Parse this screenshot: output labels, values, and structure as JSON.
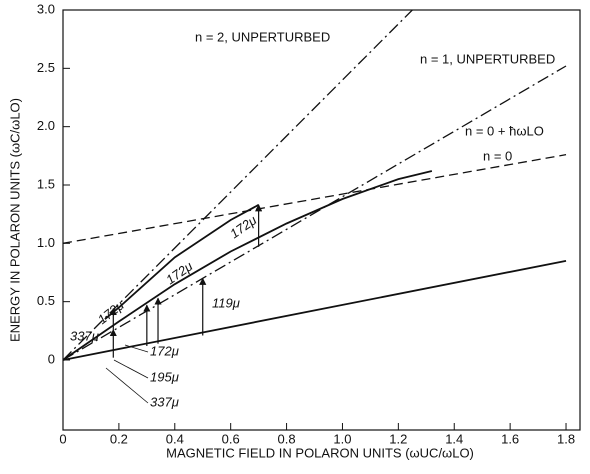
{
  "chart_data": {
    "type": "line",
    "xlabel": "MAGNETIC FIELD IN POLARON UNITS (ωUC/ωLO)",
    "ylabel": "ENERGY IN POLARON UNITS (ωC/ωLO)",
    "xlim": [
      0,
      1.85
    ],
    "ylim": [
      -0.6,
      3.0
    ],
    "xticks": [
      0,
      0.2,
      0.4,
      0.6,
      0.8,
      {
        "value": 1.0,
        "label": "1.0"
      },
      1.2,
      1.4,
      1.6,
      1.8
    ],
    "yticks": [
      0,
      0.5,
      {
        "value": 1.0,
        "label": "1.0"
      },
      1.5,
      {
        "value": 2.0,
        "label": "2.0"
      },
      2.5,
      {
        "value": 3.0,
        "label": "3.0"
      }
    ],
    "color": "#111111",
    "series": [
      {
        "name": "n = 2, UNPERTURBED",
        "style": "dashdot",
        "x": [
          0,
          1.25
        ],
        "values": [
          0,
          3.0
        ]
      },
      {
        "name": "n = 1, UNPERTURBED",
        "style": "dashdot",
        "x": [
          0,
          1.8
        ],
        "values": [
          0,
          2.52
        ]
      },
      {
        "name": "n = 0 + ħωLO",
        "style": "dashed",
        "x": [
          0,
          1.8
        ],
        "values": [
          1.0,
          1.76
        ]
      },
      {
        "name": "n = 0",
        "style": "solid",
        "x": [
          0,
          1.8
        ],
        "values": [
          0,
          0.85
        ]
      },
      {
        "style": "solid",
        "x": [
          0,
          0.2,
          0.4,
          0.6,
          0.8,
          1.0,
          1.2,
          1.32
        ],
        "values": [
          0,
          0.33,
          0.65,
          0.93,
          1.17,
          1.38,
          1.55,
          1.62
        ]
      },
      {
        "style": "solid",
        "x": [
          0.15,
          0.2,
          0.4,
          0.6,
          0.7
        ],
        "values": [
          0.35,
          0.45,
          0.88,
          1.2,
          1.33
        ]
      }
    ],
    "transitions": [
      {
        "x": 0.18,
        "from": 0.02,
        "to": 0.26
      },
      {
        "x": 0.18,
        "from": 0.26,
        "to": 0.44
      },
      {
        "x": 0.3,
        "from": 0.12,
        "to": 0.47
      },
      {
        "x": 0.34,
        "from": 0.14,
        "to": 0.53
      },
      {
        "x": 0.5,
        "from": 0.21,
        "to": 0.7
      },
      {
        "x": 0.7,
        "from": 0.97,
        "to": 1.33
      }
    ],
    "annotations": [
      "337μ",
      "172μ",
      "172μ",
      "172μ",
      "119μ",
      "172μ",
      "195μ",
      "337μ"
    ]
  }
}
